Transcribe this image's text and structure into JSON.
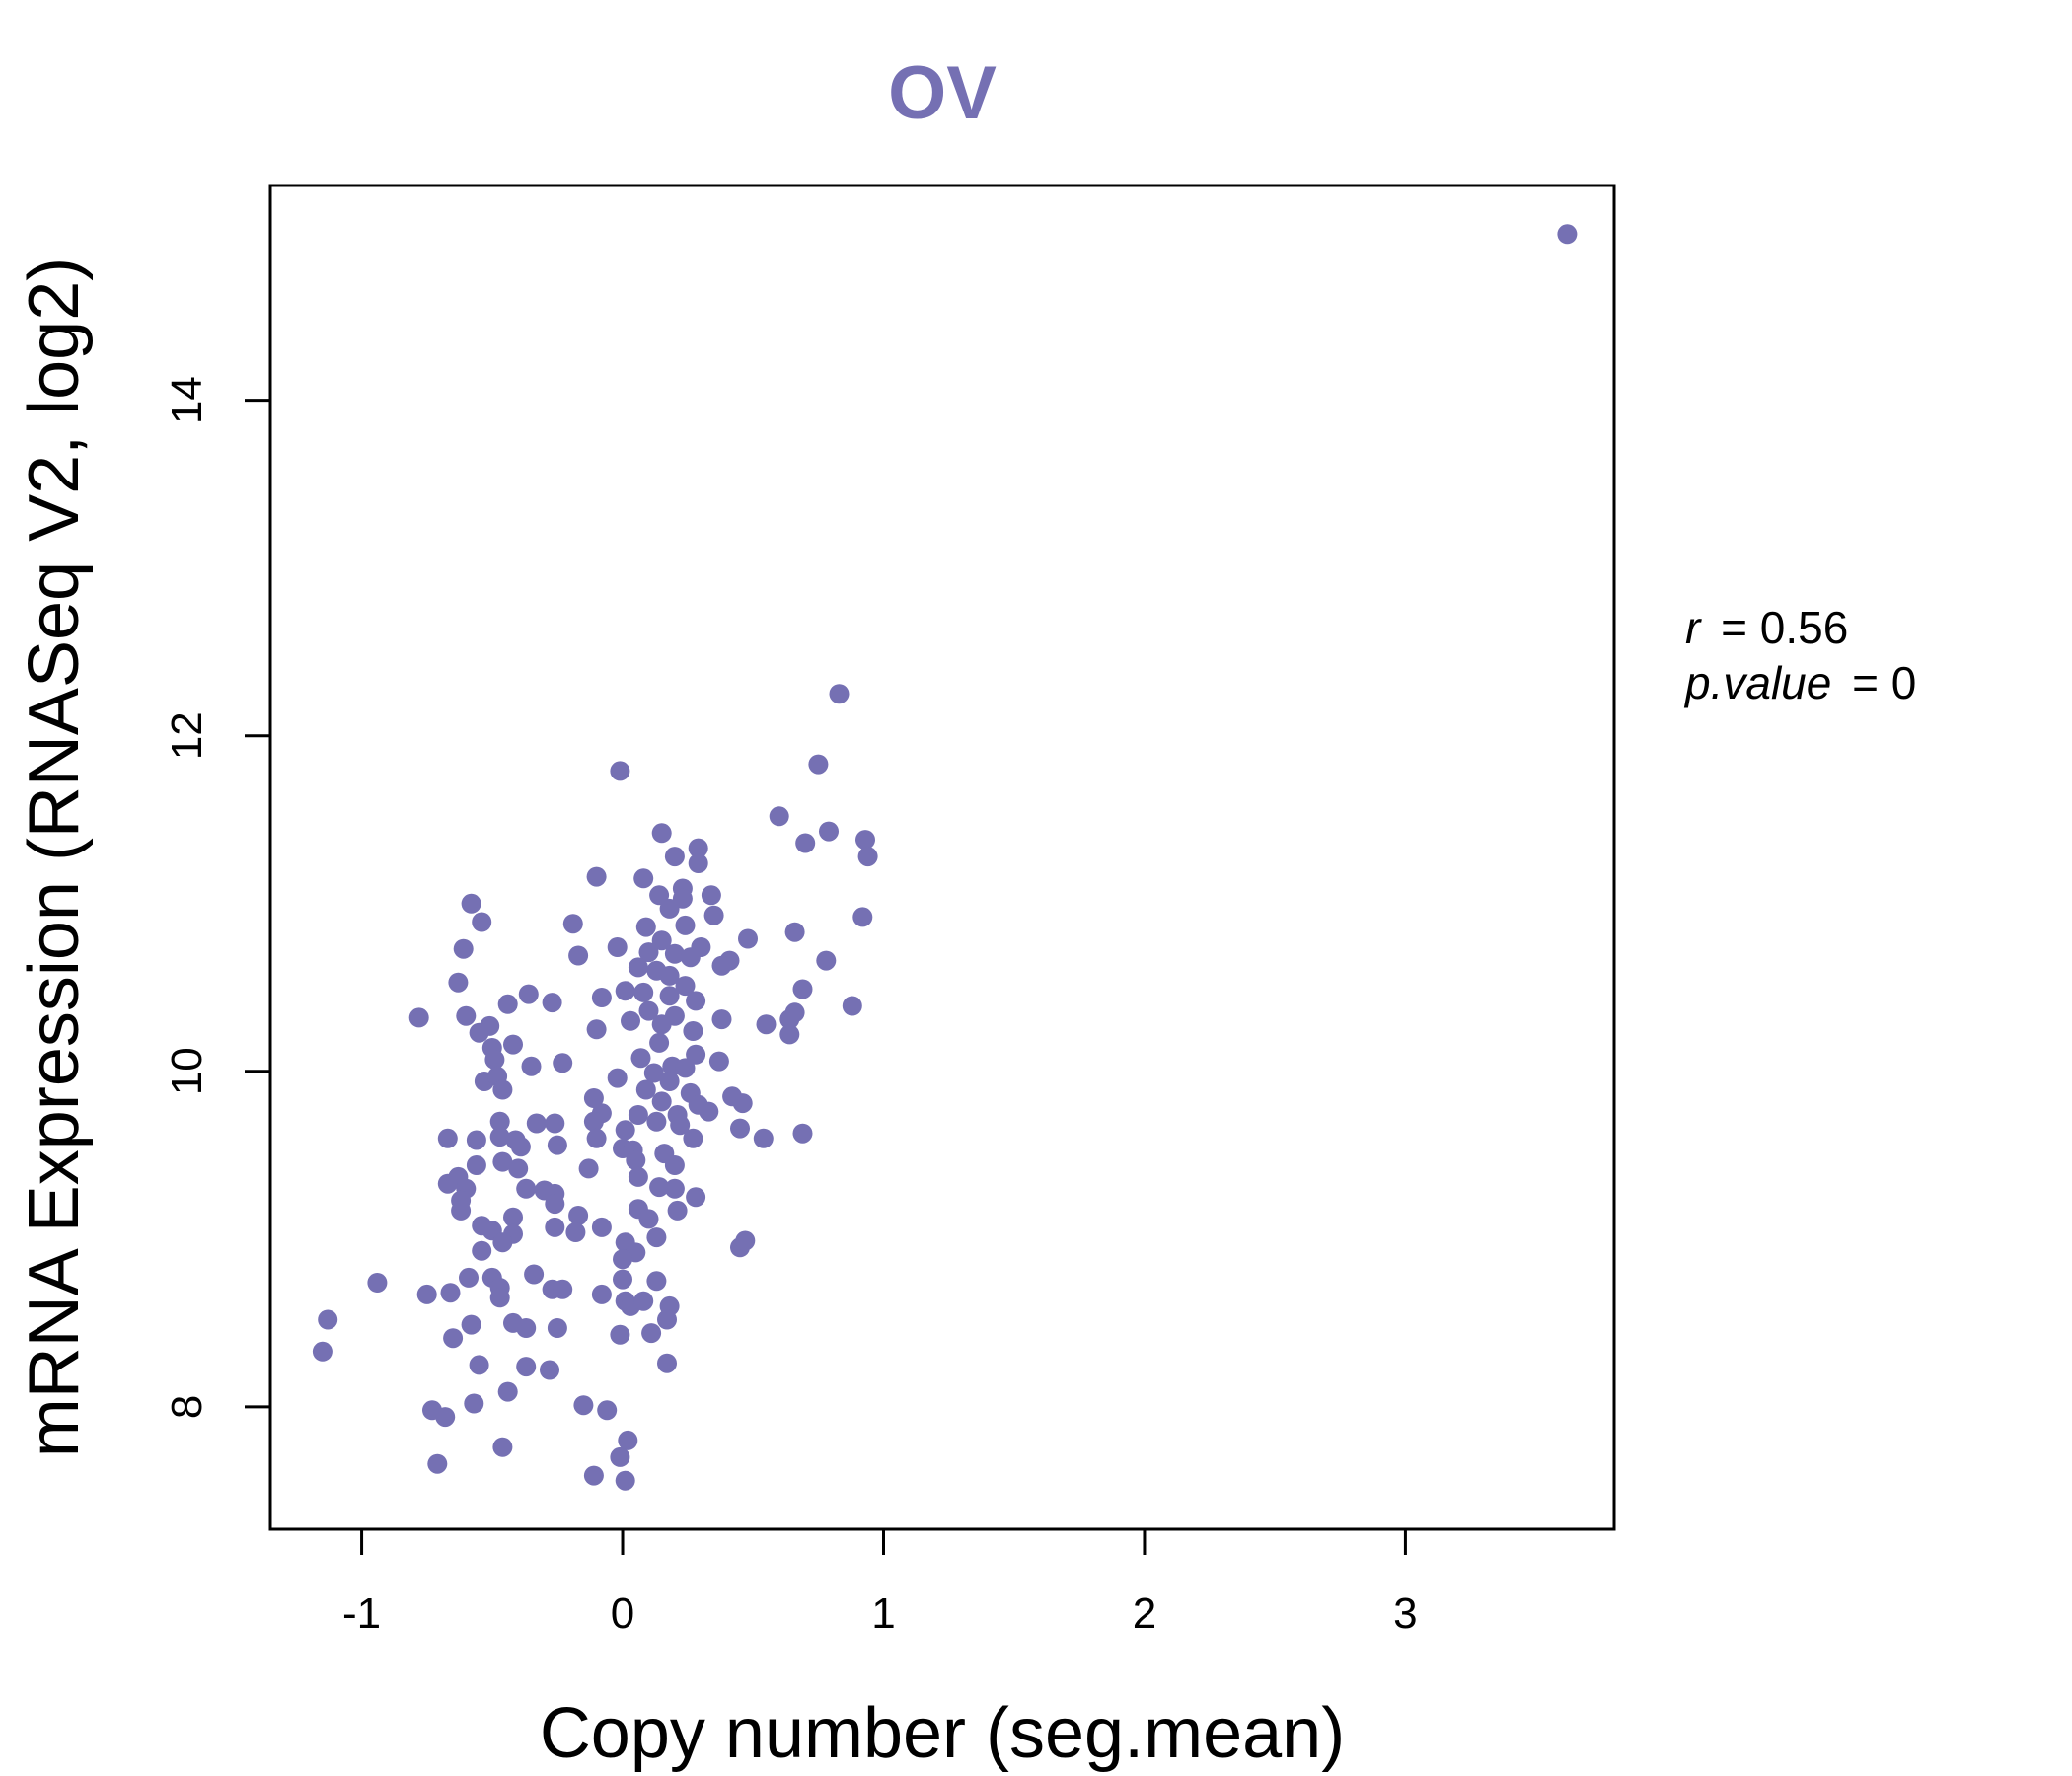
{
  "chart_data": {
    "type": "scatter",
    "title": "OV",
    "xlabel": "Copy number (seg.mean)",
    "ylabel": "mRNA Expression (RNASeq V2, log2)",
    "xlim": [
      -1.35,
      3.8
    ],
    "ylim": [
      7.27,
      15.28
    ],
    "x_ticks": [
      -1,
      0,
      1,
      2,
      3
    ],
    "x_tick_labels": [
      "-1",
      "0",
      "1",
      "2",
      "3"
    ],
    "y_ticks": [
      8,
      10,
      12,
      14
    ],
    "y_tick_labels": [
      "8",
      "10",
      "12",
      "14"
    ],
    "grid": false,
    "stats": {
      "r_label": "r",
      "r_value": "0.56",
      "p_label": "p.value",
      "p_value": "0"
    },
    "colors": {
      "points": "#7570B3",
      "title": "#7570B3",
      "axis": "#000000"
    },
    "points": [
      [
        3.62,
        14.99
      ],
      [
        0.83,
        12.25
      ],
      [
        0.75,
        11.83
      ],
      [
        -0.01,
        11.79
      ],
      [
        0.6,
        11.52
      ],
      [
        0.79,
        11.43
      ],
      [
        0.7,
        11.36
      ],
      [
        0.93,
        11.38
      ],
      [
        0.94,
        11.28
      ],
      [
        0.15,
        11.42
      ],
      [
        0.29,
        11.33
      ],
      [
        0.29,
        11.24
      ],
      [
        0.2,
        11.28
      ],
      [
        -0.1,
        11.16
      ],
      [
        0.08,
        11.15
      ],
      [
        -0.58,
        11.0
      ],
      [
        0.23,
        11.09
      ],
      [
        0.23,
        11.03
      ],
      [
        0.14,
        11.05
      ],
      [
        0.34,
        11.05
      ],
      [
        0.18,
        10.97
      ],
      [
        -0.54,
        10.89
      ],
      [
        -0.19,
        10.88
      ],
      [
        0.09,
        10.86
      ],
      [
        0.35,
        10.93
      ],
      [
        0.92,
        10.92
      ],
      [
        0.66,
        10.83
      ],
      [
        0.48,
        10.79
      ],
      [
        0.24,
        10.87
      ],
      [
        0.15,
        10.78
      ],
      [
        0.3,
        10.74
      ],
      [
        -0.61,
        10.73
      ],
      [
        -0.02,
        10.74
      ],
      [
        0.1,
        10.71
      ],
      [
        0.2,
        10.7
      ],
      [
        0.26,
        10.68
      ],
      [
        -0.17,
        10.69
      ],
      [
        0.41,
        10.66
      ],
      [
        0.38,
        10.63
      ],
      [
        0.78,
        10.66
      ],
      [
        0.06,
        10.62
      ],
      [
        -0.63,
        10.53
      ],
      [
        0.13,
        10.6
      ],
      [
        0.18,
        10.57
      ],
      [
        0.24,
        10.51
      ],
      [
        0.69,
        10.49
      ],
      [
        -0.36,
        10.46
      ],
      [
        0.01,
        10.48
      ],
      [
        -0.44,
        10.4
      ],
      [
        -0.27,
        10.41
      ],
      [
        -0.08,
        10.44
      ],
      [
        0.08,
        10.47
      ],
      [
        0.18,
        10.45
      ],
      [
        0.28,
        10.42
      ],
      [
        0.88,
        10.39
      ],
      [
        0.66,
        10.35
      ],
      [
        -0.78,
        10.32
      ],
      [
        -0.6,
        10.33
      ],
      [
        0.1,
        10.36
      ],
      [
        0.2,
        10.33
      ],
      [
        0.38,
        10.31
      ],
      [
        0.55,
        10.28
      ],
      [
        0.64,
        10.31
      ],
      [
        -0.51,
        10.27
      ],
      [
        0.03,
        10.3
      ],
      [
        0.15,
        10.28
      ],
      [
        -0.55,
        10.23
      ],
      [
        -0.1,
        10.25
      ],
      [
        0.27,
        10.24
      ],
      [
        0.64,
        10.22
      ],
      [
        -0.42,
        10.16
      ],
      [
        -0.5,
        10.14
      ],
      [
        0.14,
        10.17
      ],
      [
        -0.49,
        10.07
      ],
      [
        0.07,
        10.08
      ],
      [
        -0.35,
        10.03
      ],
      [
        -0.23,
        10.05
      ],
      [
        0.19,
        10.03
      ],
      [
        0.24,
        10.02
      ],
      [
        0.37,
        10.06
      ],
      [
        0.28,
        10.1
      ],
      [
        -0.53,
        9.94
      ],
      [
        -0.48,
        9.97
      ],
      [
        -0.02,
        9.96
      ],
      [
        0.12,
        9.99
      ],
      [
        0.18,
        9.94
      ],
      [
        -0.46,
        9.89
      ],
      [
        0.09,
        9.89
      ],
      [
        0.26,
        9.87
      ],
      [
        0.42,
        9.85
      ],
      [
        -0.11,
        9.84
      ],
      [
        0.15,
        9.82
      ],
      [
        0.29,
        9.8
      ],
      [
        0.46,
        9.81
      ],
      [
        -0.47,
        9.7
      ],
      [
        -0.33,
        9.69
      ],
      [
        -0.26,
        9.69
      ],
      [
        -0.08,
        9.75
      ],
      [
        0.06,
        9.74
      ],
      [
        0.21,
        9.74
      ],
      [
        0.33,
        9.76
      ],
      [
        -0.11,
        9.7
      ],
      [
        0.01,
        9.65
      ],
      [
        0.13,
        9.7
      ],
      [
        0.22,
        9.68
      ],
      [
        0.69,
        9.63
      ],
      [
        -0.67,
        9.6
      ],
      [
        -0.56,
        9.59
      ],
      [
        -0.47,
        9.61
      ],
      [
        -0.41,
        9.59
      ],
      [
        -0.1,
        9.6
      ],
      [
        0.27,
        9.6
      ],
      [
        0.45,
        9.66
      ],
      [
        0.54,
        9.6
      ],
      [
        -0.39,
        9.55
      ],
      [
        -0.25,
        9.56
      ],
      [
        0.0,
        9.54
      ],
      [
        0.04,
        9.53
      ],
      [
        0.16,
        9.51
      ],
      [
        -0.56,
        9.44
      ],
      [
        -0.46,
        9.46
      ],
      [
        -0.4,
        9.42
      ],
      [
        -0.13,
        9.42
      ],
      [
        0.05,
        9.47
      ],
      [
        0.2,
        9.44
      ],
      [
        -0.63,
        9.37
      ],
      [
        -0.67,
        9.33
      ],
      [
        -0.6,
        9.3
      ],
      [
        -0.37,
        9.3
      ],
      [
        -0.3,
        9.29
      ],
      [
        -0.26,
        9.27
      ],
      [
        0.06,
        9.37
      ],
      [
        0.14,
        9.31
      ],
      [
        0.2,
        9.3
      ],
      [
        0.28,
        9.25
      ],
      [
        -0.62,
        9.23
      ],
      [
        -0.62,
        9.17
      ],
      [
        -0.42,
        9.13
      ],
      [
        -0.26,
        9.21
      ],
      [
        -0.17,
        9.14
      ],
      [
        0.06,
        9.18
      ],
      [
        0.21,
        9.17
      ],
      [
        -0.54,
        9.08
      ],
      [
        -0.5,
        9.05
      ],
      [
        -0.42,
        9.03
      ],
      [
        -0.26,
        9.07
      ],
      [
        -0.18,
        9.04
      ],
      [
        -0.08,
        9.07
      ],
      [
        0.1,
        9.12
      ],
      [
        0.13,
        9.01
      ],
      [
        -0.46,
        8.98
      ],
      [
        0.01,
        8.98
      ],
      [
        0.05,
        8.92
      ],
      [
        0.45,
        8.95
      ],
      [
        0.47,
        8.99
      ],
      [
        -0.54,
        8.93
      ],
      [
        0.0,
        8.88
      ],
      [
        -0.94,
        8.74
      ],
      [
        -0.59,
        8.77
      ],
      [
        -0.5,
        8.77
      ],
      [
        -0.47,
        8.71
      ],
      [
        -0.34,
        8.79
      ],
      [
        -0.27,
        8.7
      ],
      [
        -0.23,
        8.7
      ],
      [
        0.0,
        8.76
      ],
      [
        0.13,
        8.75
      ],
      [
        -0.75,
        8.67
      ],
      [
        -0.66,
        8.68
      ],
      [
        -0.47,
        8.65
      ],
      [
        -0.08,
        8.67
      ],
      [
        0.01,
        8.63
      ],
      [
        0.03,
        8.6
      ],
      [
        0.08,
        8.63
      ],
      [
        0.18,
        8.6
      ],
      [
        -1.13,
        8.52
      ],
      [
        -0.58,
        8.49
      ],
      [
        -0.42,
        8.5
      ],
      [
        -0.37,
        8.47
      ],
      [
        -0.25,
        8.47
      ],
      [
        0.17,
        8.52
      ],
      [
        -0.65,
        8.41
      ],
      [
        -0.01,
        8.43
      ],
      [
        0.11,
        8.44
      ],
      [
        -1.15,
        8.33
      ],
      [
        -0.55,
        8.25
      ],
      [
        -0.37,
        8.24
      ],
      [
        -0.28,
        8.22
      ],
      [
        0.17,
        8.26
      ],
      [
        -0.44,
        8.09
      ],
      [
        -0.57,
        8.02
      ],
      [
        -0.15,
        8.01
      ],
      [
        -0.06,
        7.98
      ],
      [
        -0.73,
        7.98
      ],
      [
        -0.68,
        7.94
      ],
      [
        -0.46,
        7.76
      ],
      [
        0.02,
        7.8
      ],
      [
        -0.01,
        7.7
      ],
      [
        -0.71,
        7.66
      ],
      [
        -0.11,
        7.59
      ],
      [
        0.01,
        7.56
      ]
    ]
  }
}
